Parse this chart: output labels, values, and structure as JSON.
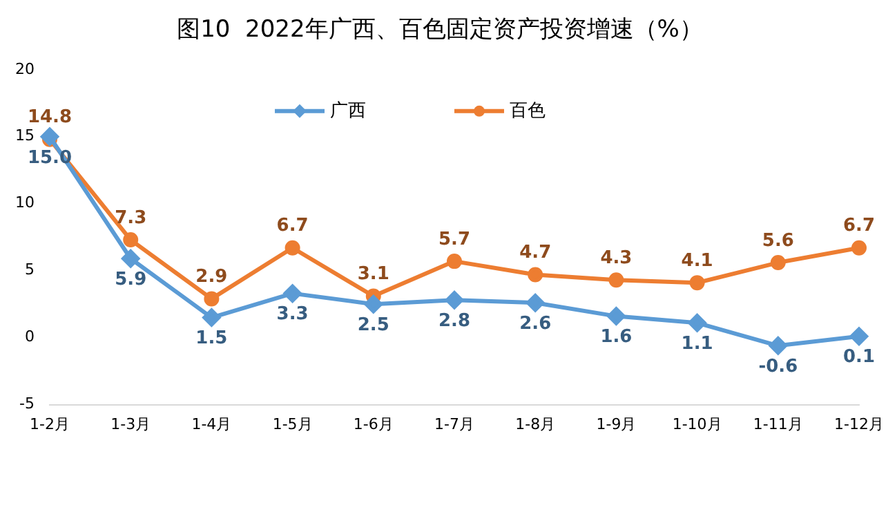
{
  "chart_data": {
    "type": "line",
    "title": "图10  2022年广西、百色固定资产投资增速（%）",
    "categories": [
      "1-2月",
      "1-3月",
      "1-4月",
      "1-5月",
      "1-6月",
      "1-7月",
      "1-8月",
      "1-9月",
      "1-10月",
      "1-11月",
      "1-12月"
    ],
    "series": [
      {
        "name": "广西",
        "color": "#5b9bd5",
        "marker": "diamond",
        "values": [
          15.0,
          5.9,
          1.5,
          3.3,
          2.5,
          2.8,
          2.6,
          1.6,
          1.1,
          -0.6,
          0.1
        ],
        "value_labels": [
          "15.0",
          "5.9",
          "1.5",
          "3.3",
          "2.5",
          "2.8",
          "2.6",
          "1.6",
          "1.1",
          "-0.6",
          "0.1"
        ]
      },
      {
        "name": "百色",
        "color": "#ed7d31",
        "marker": "circle",
        "values": [
          14.8,
          7.3,
          2.9,
          6.7,
          3.1,
          5.7,
          4.7,
          4.3,
          4.1,
          5.6,
          6.7
        ],
        "value_labels": [
          "14.8",
          "7.3",
          "2.9",
          "6.7",
          "3.1",
          "5.7",
          "4.7",
          "4.3",
          "4.1",
          "5.6",
          "6.7"
        ]
      }
    ],
    "ylim": [
      -5,
      20
    ],
    "yticks": [
      -5,
      0,
      5,
      10,
      15,
      20
    ],
    "grid": false,
    "legend": "top"
  }
}
